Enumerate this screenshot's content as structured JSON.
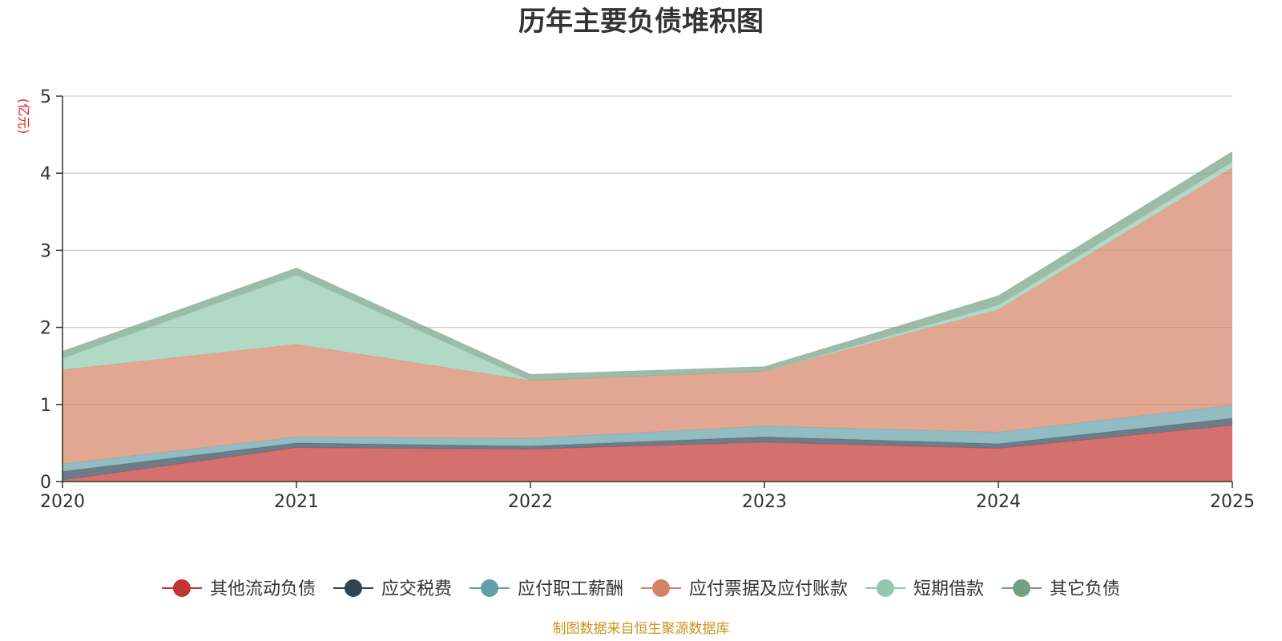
{
  "chart_data": {
    "type": "area",
    "stacked": true,
    "title": "历年主要负债堆积图",
    "unit_label": "(亿元)",
    "x": [
      "2020",
      "2021",
      "2022",
      "2023",
      "2024",
      "2025"
    ],
    "ylim": [
      0,
      5
    ],
    "yticks": [
      "0",
      "1",
      "2",
      "3",
      "4",
      "5"
    ],
    "grid": true,
    "legend_position": "bottom",
    "series": [
      {
        "name": "其他流动负债",
        "color": "#c23531",
        "values": [
          0.02,
          0.44,
          0.42,
          0.51,
          0.43,
          0.73
        ]
      },
      {
        "name": "应交税费",
        "color": "#2f4554",
        "values": [
          0.11,
          0.06,
          0.04,
          0.07,
          0.06,
          0.09
        ]
      },
      {
        "name": "应付职工薪酬",
        "color": "#61a0a8",
        "values": [
          0.1,
          0.08,
          0.1,
          0.14,
          0.15,
          0.17
        ]
      },
      {
        "name": "应付票据及应付账款",
        "color": "#d48265",
        "values": [
          1.22,
          1.2,
          0.75,
          0.71,
          1.59,
          3.08
        ]
      },
      {
        "name": "短期借款",
        "color": "#91c7ae",
        "values": [
          0.15,
          0.9,
          0.0,
          0.0,
          0.06,
          0.08
        ]
      },
      {
        "name": "其它负债",
        "color": "#749f83",
        "values": [
          0.09,
          0.09,
          0.08,
          0.06,
          0.12,
          0.13
        ]
      }
    ]
  },
  "source_note": "制图数据来自恒生聚源数据库"
}
